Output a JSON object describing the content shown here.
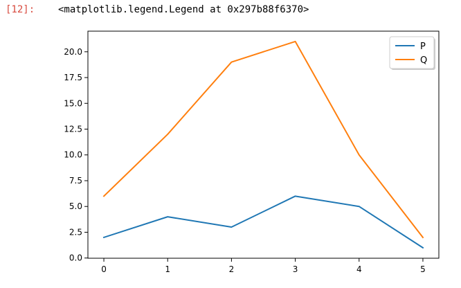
{
  "cell": {
    "prompt": "[12]:",
    "output_text": "<matplotlib.legend.Legend at 0x297b88f6370>"
  },
  "chart_data": {
    "type": "line",
    "x": [
      0,
      1,
      2,
      3,
      4,
      5
    ],
    "series": [
      {
        "name": "P",
        "values": [
          2,
          4,
          3,
          6,
          5,
          1
        ],
        "color": "#1f77b4"
      },
      {
        "name": "Q",
        "values": [
          6,
          12,
          19,
          21,
          10,
          2
        ],
        "color": "#ff7f0e"
      }
    ],
    "x_ticks": [
      "0",
      "1",
      "2",
      "3",
      "4",
      "5"
    ],
    "y_ticks": [
      "0.0",
      "2.5",
      "5.0",
      "7.5",
      "10.0",
      "12.5",
      "15.0",
      "17.5",
      "20.0"
    ],
    "xlim": [
      -0.25,
      5.25
    ],
    "ylim": [
      -0.02,
      22.0
    ],
    "grid": false,
    "legend_position": "top-right"
  }
}
